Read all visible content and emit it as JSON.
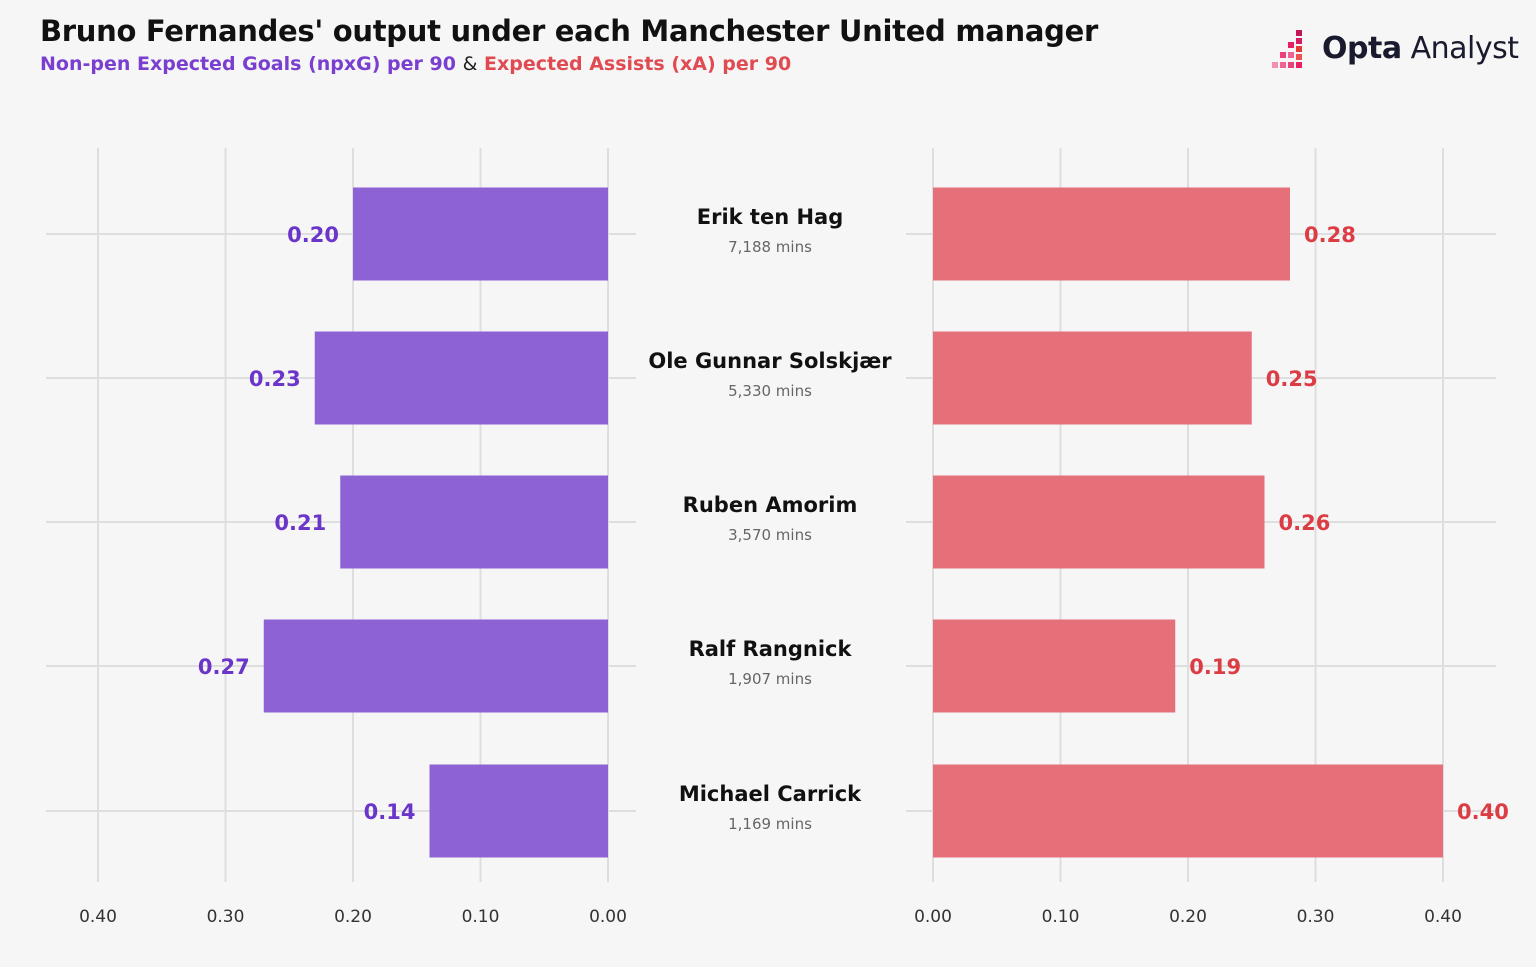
{
  "header": {
    "title": "Bruno Fernandes' output under each Manchester United manager",
    "subtitle_npxg": "Non-pen Expected Goals (npxG) per 90",
    "subtitle_sep": "&",
    "subtitle_xa": "Expected Assists (xA) per 90"
  },
  "logo": {
    "brand": "Opta",
    "product": "Analyst"
  },
  "colors": {
    "npxg": "#8c62d4",
    "npxg_label": "#6a35c8",
    "xa": "#e5707a",
    "xa_label": "#dc3c44",
    "grid": "#dedede"
  },
  "managers": [
    {
      "name": "Erik ten Hag",
      "mins": "7,188 mins"
    },
    {
      "name": "Ole Gunnar Solskjær",
      "mins": "5,330 mins"
    },
    {
      "name": "Ruben Amorim",
      "mins": "3,570 mins"
    },
    {
      "name": "Ralf Rangnick",
      "mins": "1,907 mins"
    },
    {
      "name": "Michael Carrick",
      "mins": "1,169 mins"
    }
  ],
  "chart_data": [
    {
      "type": "bar",
      "orientation": "horizontal",
      "direction": "right-to-left",
      "categories": [
        "Erik ten Hag",
        "Ole Gunnar Solskjær",
        "Ruben Amorim",
        "Ralf Rangnick",
        "Michael Carrick"
      ],
      "values": [
        0.2,
        0.23,
        0.21,
        0.27,
        0.14
      ],
      "labels": [
        "0.20",
        "0.23",
        "0.21",
        "0.27",
        "0.14"
      ],
      "xlim": [
        0,
        0.4
      ],
      "ticks": [
        "0.40",
        "0.30",
        "0.20",
        "0.10",
        "0.00"
      ],
      "grid": true
    },
    {
      "type": "bar",
      "orientation": "horizontal",
      "direction": "left-to-right",
      "categories": [
        "Erik ten Hag",
        "Ole Gunnar Solskjær",
        "Ruben Amorim",
        "Ralf Rangnick",
        "Michael Carrick"
      ],
      "values": [
        0.28,
        0.25,
        0.26,
        0.19,
        0.4
      ],
      "labels": [
        "0.28",
        "0.25",
        "0.26",
        "0.19",
        "0.40"
      ],
      "xlim": [
        0,
        0.4
      ],
      "ticks": [
        "0.00",
        "0.10",
        "0.20",
        "0.30",
        "0.40"
      ],
      "grid": true
    }
  ]
}
